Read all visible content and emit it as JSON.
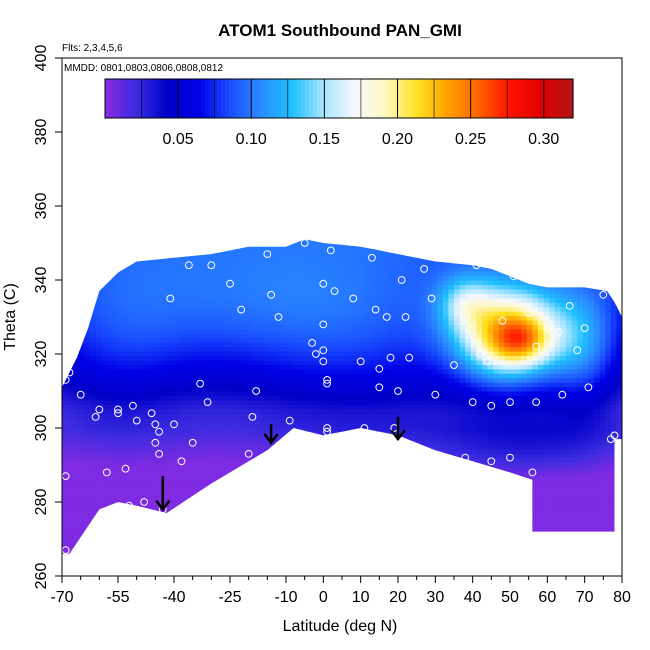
{
  "chart_data": {
    "type": "heatmap",
    "title": "ATOM1 Southbound PAN_GMI",
    "flights_label": "Flts: 2,3,4,5,6",
    "dates_label": "MMDD: 0801,0803,0806,0808,0812",
    "xlabel": "Latitude (deg N)",
    "ylabel": "Theta (C)",
    "xlim": [
      -70,
      80
    ],
    "ylim": [
      260,
      400
    ],
    "x_tick_labels": [
      "-70",
      "-55",
      "-40",
      "-25",
      "-10",
      "0",
      "10",
      "20",
      "30",
      "40",
      "50",
      "60",
      "70",
      "80"
    ],
    "x_tick_values": [
      -70,
      -55,
      -40,
      -25,
      -10,
      0,
      10,
      20,
      30,
      40,
      50,
      60,
      70,
      80
    ],
    "x_minor_ticks": [
      -65,
      -60,
      -50,
      -45,
      -35,
      -30,
      -20,
      -15,
      -5,
      5,
      15,
      25,
      35,
      45,
      55,
      65,
      75
    ],
    "y_ticks": [
      260,
      280,
      300,
      320,
      340,
      360,
      380,
      400
    ],
    "colorbar": {
      "range": [
        0.0,
        0.32
      ],
      "tick_values": [
        0.05,
        0.1,
        0.15,
        0.2,
        0.25,
        0.3
      ],
      "tick_labels": [
        "0.05",
        "0.10",
        "0.15",
        "0.20",
        "0.25",
        "0.30"
      ],
      "colors": [
        "#8a2be2",
        "#3a2be0",
        "#0000c8",
        "#0000e6",
        "#1a4dff",
        "#2a8cff",
        "#1ec0ff",
        "#a8e4ff",
        "#f4f8ff",
        "#fff8c0",
        "#ffe020",
        "#ffa000",
        "#ff6000",
        "#ff1000",
        "#e00000",
        "#b01818"
      ]
    },
    "boundary_top": [
      [
        -70,
        311
      ],
      [
        -66,
        319
      ],
      [
        -63,
        327
      ],
      [
        -60,
        337
      ],
      [
        -55,
        342
      ],
      [
        -50,
        345
      ],
      [
        -40,
        346
      ],
      [
        -30,
        347
      ],
      [
        -20,
        349
      ],
      [
        -10,
        349
      ],
      [
        -5,
        351
      ],
      [
        0,
        350
      ],
      [
        10,
        349
      ],
      [
        20,
        347
      ],
      [
        30,
        345
      ],
      [
        40,
        344
      ],
      [
        45,
        343
      ],
      [
        50,
        341
      ],
      [
        55,
        339
      ],
      [
        60,
        338
      ],
      [
        70,
        338
      ],
      [
        76,
        337
      ],
      [
        78,
        334
      ],
      [
        80,
        330
      ],
      [
        80,
        297
      ]
    ],
    "boundary_bottom": [
      [
        -70,
        266
      ],
      [
        -68,
        266
      ],
      [
        -60,
        278
      ],
      [
        -55,
        280
      ],
      [
        -50,
        279
      ],
      [
        -42,
        277
      ],
      [
        -30,
        285
      ],
      [
        -15,
        294
      ],
      [
        -8,
        300
      ],
      [
        0,
        298
      ],
      [
        10,
        300
      ],
      [
        20,
        298
      ],
      [
        30,
        294
      ],
      [
        40,
        291
      ],
      [
        50,
        288
      ],
      [
        56,
        286
      ],
      [
        56,
        272
      ],
      [
        65,
        272
      ],
      [
        78,
        272
      ],
      [
        78,
        297
      ],
      [
        80,
        297
      ]
    ],
    "field_background": 0.01,
    "field_features": [
      {
        "lat": 50,
        "theta": 325,
        "sigma_lat": 10,
        "sigma_theta": 9,
        "amplitude": 0.175
      },
      {
        "lat": 53,
        "theta": 324,
        "sigma_lat": 5,
        "sigma_theta": 4,
        "amplitude": 0.05
      },
      {
        "lat": 38,
        "theta": 334,
        "sigma_lat": 5,
        "sigma_theta": 5,
        "amplitude": 0.05
      },
      {
        "lat": 70,
        "theta": 322,
        "sigma_lat": 7,
        "sigma_theta": 12,
        "amplitude": 0.06
      },
      {
        "lat": -30,
        "theta": 332,
        "sigma_lat": 32,
        "sigma_theta": 14,
        "amplitude": 0.03
      },
      {
        "lat": 10,
        "theta": 322,
        "sigma_lat": 26,
        "sigma_theta": 18,
        "amplitude": 0.035
      },
      {
        "lat": -55,
        "theta": 318,
        "sigma_lat": 14,
        "sigma_theta": 16,
        "amplitude": 0.025
      },
      {
        "lat": 55,
        "theta": 296,
        "sigma_lat": 18,
        "sigma_theta": 7,
        "amplitude": 0.025
      }
    ],
    "field_theta_gradient": {
      "start_theta": 305,
      "increment_per_theta": 0.0016
    },
    "field_low_theta_damping": {
      "below_theta": 300,
      "per_theta": 0.0012,
      "floor": 0.003
    },
    "arrows": [
      {
        "lat": -43,
        "theta_start": 287,
        "theta_end": 278
      },
      {
        "lat": -14,
        "theta_start": 301,
        "theta_end": 296
      },
      {
        "lat": 20,
        "theta_start": 303,
        "theta_end": 297
      }
    ],
    "observations": [
      [
        -69,
        267
      ],
      [
        -69,
        287
      ],
      [
        -69,
        313
      ],
      [
        -68,
        315
      ],
      [
        -65,
        309
      ],
      [
        -61,
        303
      ],
      [
        -60,
        305
      ],
      [
        -59,
        277
      ],
      [
        -58,
        288
      ],
      [
        -55,
        305
      ],
      [
        -55,
        304
      ],
      [
        -53,
        289
      ],
      [
        -52,
        279
      ],
      [
        -51,
        306
      ],
      [
        -50,
        302
      ],
      [
        -48,
        280
      ],
      [
        -46,
        304
      ],
      [
        -45,
        301
      ],
      [
        -45,
        296
      ],
      [
        -44,
        299
      ],
      [
        -44,
        293
      ],
      [
        -43,
        278
      ],
      [
        -41,
        335
      ],
      [
        -40,
        301
      ],
      [
        -38,
        291
      ],
      [
        -36,
        344
      ],
      [
        -35,
        296
      ],
      [
        -33,
        312
      ],
      [
        -31,
        307
      ],
      [
        -30,
        344
      ],
      [
        -25,
        339
      ],
      [
        -22,
        332
      ],
      [
        -20,
        293
      ],
      [
        -19,
        303
      ],
      [
        -18,
        310
      ],
      [
        -15,
        347
      ],
      [
        -14,
        336
      ],
      [
        -12,
        330
      ],
      [
        -9,
        302
      ],
      [
        -5,
        350
      ],
      [
        -3,
        323
      ],
      [
        -2,
        320
      ],
      [
        0,
        339
      ],
      [
        0,
        328
      ],
      [
        0,
        321
      ],
      [
        0,
        318
      ],
      [
        1,
        313
      ],
      [
        1,
        312
      ],
      [
        1,
        300
      ],
      [
        1,
        299
      ],
      [
        2,
        348
      ],
      [
        3,
        337
      ],
      [
        8,
        335
      ],
      [
        10,
        318
      ],
      [
        11,
        300
      ],
      [
        13,
        346
      ],
      [
        14,
        332
      ],
      [
        15,
        316
      ],
      [
        15,
        311
      ],
      [
        17,
        330
      ],
      [
        18,
        319
      ],
      [
        19,
        300
      ],
      [
        20,
        310
      ],
      [
        21,
        340
      ],
      [
        22,
        330
      ],
      [
        23,
        319
      ],
      [
        27,
        343
      ],
      [
        29,
        335
      ],
      [
        30,
        309
      ],
      [
        35,
        317
      ],
      [
        38,
        292
      ],
      [
        40,
        307
      ],
      [
        41,
        344
      ],
      [
        42,
        320
      ],
      [
        44,
        318
      ],
      [
        45,
        306
      ],
      [
        45,
        291
      ],
      [
        48,
        329
      ],
      [
        50,
        307
      ],
      [
        50,
        292
      ],
      [
        51,
        341
      ],
      [
        55,
        331
      ],
      [
        56,
        288
      ],
      [
        57,
        322
      ],
      [
        57,
        307
      ],
      [
        60,
        327
      ],
      [
        63,
        326
      ],
      [
        64,
        309
      ],
      [
        66,
        333
      ],
      [
        68,
        321
      ],
      [
        70,
        327
      ],
      [
        71,
        311
      ],
      [
        75,
        336
      ],
      [
        77,
        297
      ],
      [
        78,
        298
      ],
      [
        79,
        291
      ],
      [
        79,
        289
      ],
      [
        79,
        281
      ],
      [
        79,
        274
      ]
    ]
  }
}
